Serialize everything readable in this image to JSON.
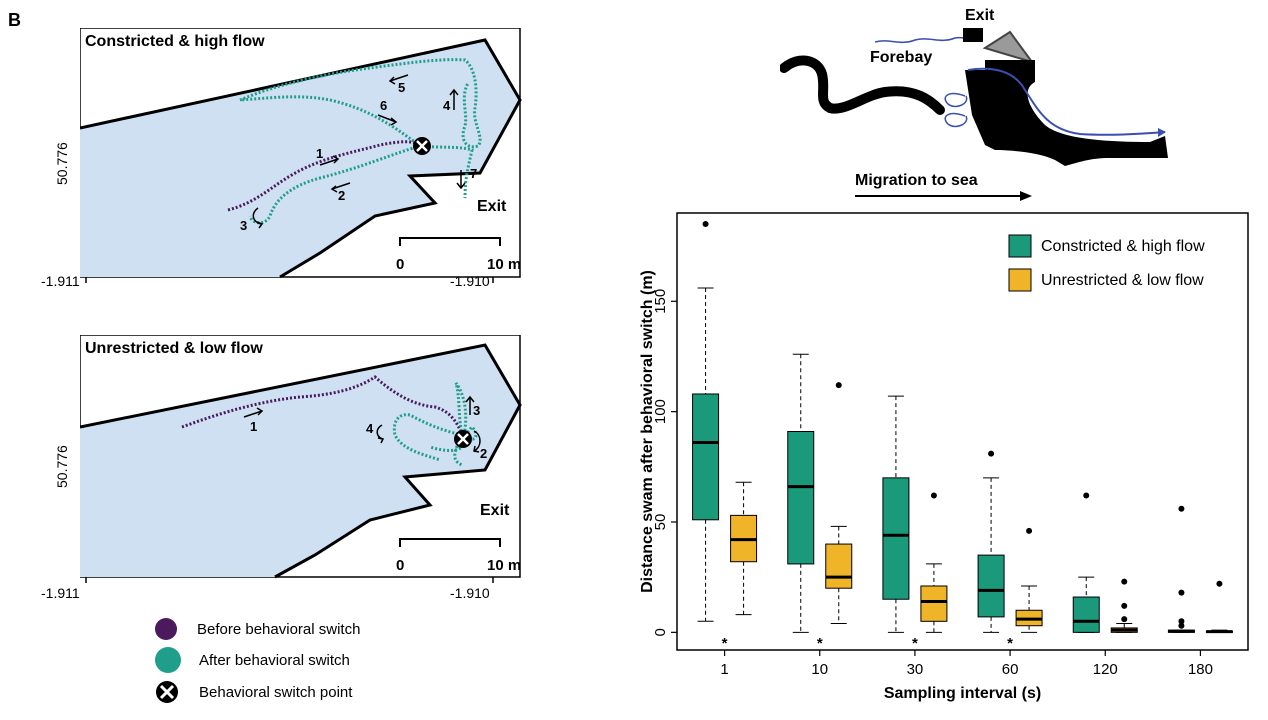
{
  "panel_label": "B",
  "maps": [
    {
      "title": "Constricted & high flow",
      "y_tick": "50.776",
      "x_ticks": [
        "-1.911",
        "-1.910"
      ],
      "scale_labels": [
        "0",
        "10 m"
      ],
      "exit_label": "Exit",
      "path_labels": [
        "1",
        "2",
        "3",
        "4",
        "5",
        "6",
        "7"
      ]
    },
    {
      "title": "Unrestricted & low flow",
      "y_tick": "50.776",
      "x_ticks": [
        "-1.911",
        "-1.910"
      ],
      "scale_labels": [
        "0",
        "10 m"
      ],
      "exit_label": "Exit",
      "path_labels": [
        "1",
        "2",
        "3",
        "4"
      ]
    }
  ],
  "map_legend": [
    {
      "label": "Before behavioral switch",
      "color": "#4a1a5c"
    },
    {
      "label": "After behavioral switch",
      "color": "#1f9e8c"
    },
    {
      "label": "Behavioral switch point",
      "icon": "x-circle-icon"
    }
  ],
  "schematic": {
    "exit_label": "Exit",
    "forebay_label": "Forebay",
    "migration_label": "Migration to sea"
  },
  "colors": {
    "constricted": "#1a9a7a",
    "unrestricted": "#f0b429",
    "map_fill": "#cfe0f3",
    "before": "#4a1a5c",
    "after": "#1f9e8c",
    "flow_line": "#3a4fb0"
  },
  "chart_data": {
    "type": "box",
    "xlabel": "Sampling interval (s)",
    "ylabel": "Distance swam after behavioral switch (m)",
    "categories": [
      "1",
      "10",
      "30",
      "60",
      "120",
      "180"
    ],
    "ylim": [
      -8,
      190
    ],
    "yticks": [
      0,
      50,
      100,
      150
    ],
    "legend_position": "top-right",
    "significance_marker": "*",
    "significant_categories": [
      "1",
      "10",
      "30",
      "60"
    ],
    "series": [
      {
        "name": "Constricted & high flow",
        "boxes": [
          {
            "whisker_low": 5,
            "q1": 51,
            "median": 86,
            "q3": 108,
            "whisker_high": 156,
            "outliers": [
              185
            ]
          },
          {
            "whisker_low": 0,
            "q1": 31,
            "median": 66,
            "q3": 91,
            "whisker_high": 126,
            "outliers": []
          },
          {
            "whisker_low": 0,
            "q1": 15,
            "median": 44,
            "q3": 70,
            "whisker_high": 107,
            "outliers": []
          },
          {
            "whisker_low": 0,
            "q1": 7,
            "median": 19,
            "q3": 35,
            "whisker_high": 70,
            "outliers": [
              81
            ]
          },
          {
            "whisker_low": 0,
            "q1": 0,
            "median": 5,
            "q3": 16,
            "whisker_high": 25,
            "outliers": [
              62
            ]
          },
          {
            "whisker_low": 0,
            "q1": 0,
            "median": 0.5,
            "q3": 1,
            "whisker_high": 1,
            "outliers": [
              56,
              18,
              5,
              3
            ]
          }
        ]
      },
      {
        "name": "Unrestricted & low flow",
        "boxes": [
          {
            "whisker_low": 8,
            "q1": 32,
            "median": 42,
            "q3": 53,
            "whisker_high": 68,
            "outliers": []
          },
          {
            "whisker_low": 4,
            "q1": 20,
            "median": 25,
            "q3": 40,
            "whisker_high": 48,
            "outliers": [
              112
            ]
          },
          {
            "whisker_low": 0,
            "q1": 5,
            "median": 14,
            "q3": 21,
            "whisker_high": 31,
            "outliers": [
              62
            ]
          },
          {
            "whisker_low": 0,
            "q1": 3,
            "median": 6,
            "q3": 10,
            "whisker_high": 21,
            "outliers": [
              46
            ]
          },
          {
            "whisker_low": 0,
            "q1": 0,
            "median": 1,
            "q3": 2,
            "whisker_high": 4,
            "outliers": [
              23,
              12,
              6
            ]
          },
          {
            "whisker_low": 0,
            "q1": 0,
            "median": 0.3,
            "q3": 0.6,
            "whisker_high": 1,
            "outliers": [
              22
            ]
          }
        ]
      }
    ]
  }
}
